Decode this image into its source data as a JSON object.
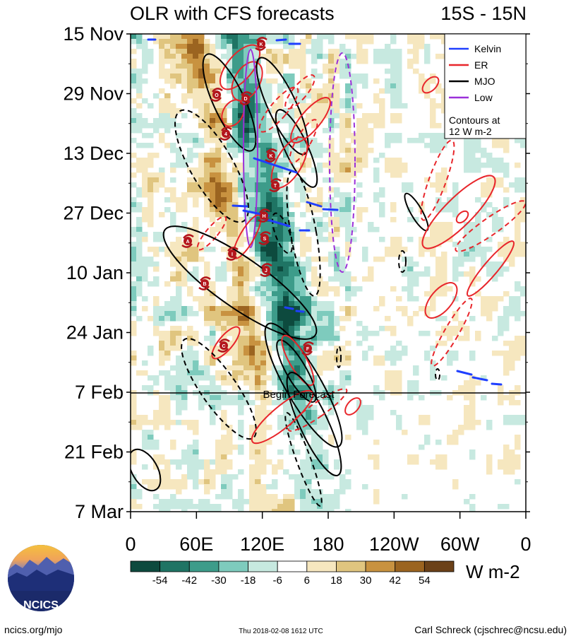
{
  "header": {
    "title": "OLR with CFS forecasts",
    "region": "15S - 15N"
  },
  "chart_data": {
    "type": "heatmap",
    "title": "OLR with CFS forecasts",
    "region": "15S - 15N",
    "x_ticks": [
      "0",
      "60E",
      "120E",
      "180",
      "120W",
      "60W",
      "0"
    ],
    "x_range": [
      0,
      360
    ],
    "y_ticks": [
      "15 Nov",
      "29 Nov",
      "13 Dec",
      "27 Dec",
      "10 Jan",
      "24 Jan",
      "7 Feb",
      "21 Feb",
      "7 Mar"
    ],
    "y_range": [
      "15 Nov",
      "7 Mar"
    ],
    "forecast_label": "Begin Forecast",
    "forecast_start": "7 Feb",
    "legend": [
      {
        "label": "Kelvin",
        "color": "#1f3fff",
        "dash": "solid"
      },
      {
        "label": "ER",
        "color": "#e8262b",
        "dash": "solid"
      },
      {
        "label": "MJO",
        "color": "#000000",
        "dash": "solid"
      },
      {
        "label": "Low",
        "color": "#9b30d9",
        "dash": "solid"
      }
    ],
    "legend_note": "Contours at\n12 W m-2",
    "colorbar": {
      "values": [
        -54,
        -42,
        -30,
        -18,
        -6,
        6,
        18,
        30,
        42,
        54
      ],
      "labels": [
        "-54",
        "-42",
        "-30",
        "-18",
        "-6",
        "6",
        "18",
        "30",
        "42",
        "54"
      ],
      "colors": [
        "#0d4a3e",
        "#1f7464",
        "#3d9c8a",
        "#7ecbbd",
        "#c7e9e0",
        "#ffffff",
        "#f6e7bf",
        "#e0c57f",
        "#c89240",
        "#9b6420",
        "#6b4118"
      ],
      "units": "W m-2"
    },
    "tc_labels": [
      "K",
      "O",
      "D",
      "4",
      "K",
      "T",
      "H",
      "A",
      "S",
      "I",
      "J",
      "B",
      "C",
      "F"
    ]
  },
  "footer": {
    "logo_text": "NCICS",
    "url": "ncics.org/mjo",
    "timestamp": "Thu 2018-02-08 1612 UTC",
    "author": "Carl Schreck (cjschrec@ncsu.edu)"
  }
}
